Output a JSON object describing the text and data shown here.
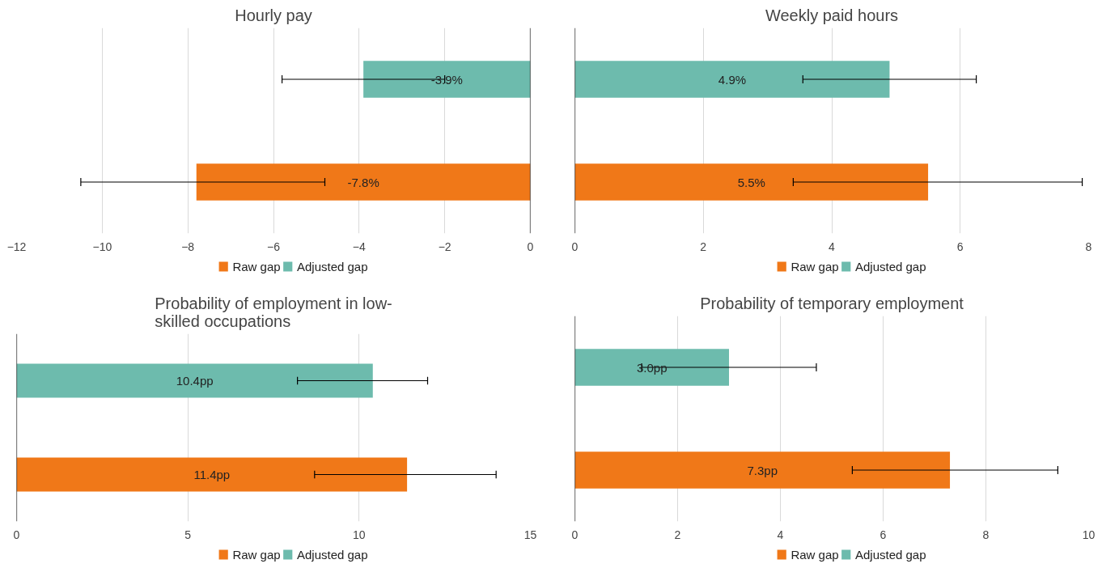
{
  "chart_data": [
    {
      "type": "bar",
      "orientation": "horizontal",
      "title": "Hourly pay",
      "categories": [
        null,
        null
      ],
      "xlim": [
        -12,
        0
      ],
      "xticks": [
        -12,
        -10,
        -8,
        -6,
        -4,
        -2,
        0
      ],
      "grid": "x",
      "legend": "bottom",
      "series": [
        {
          "name": "Raw gap",
          "color": "#f07818",
          "values": [
            null,
            -7.8
          ],
          "errors": [
            null,
            [
              -10.5,
              -4.8
            ]
          ],
          "value_labels": [
            null,
            "-7.8%"
          ]
        },
        {
          "name": "Adjusted gap",
          "color": "#6dbbad",
          "values": [
            -3.9,
            null
          ],
          "errors": [
            [
              -5.8,
              -2.0
            ],
            null
          ],
          "value_labels": [
            "-3.9%",
            null
          ]
        }
      ]
    },
    {
      "type": "bar",
      "orientation": "horizontal",
      "title": "Weekly paid hours",
      "categories": [
        null,
        null
      ],
      "xlim": [
        0,
        8
      ],
      "xticks": [
        0,
        2,
        4,
        6,
        8
      ],
      "grid": "x",
      "legend": "bottom",
      "series": [
        {
          "name": "Raw gap",
          "color": "#f07818",
          "values": [
            null,
            5.5
          ],
          "errors": [
            null,
            [
              3.4,
              7.9
            ]
          ],
          "value_labels": [
            null,
            "5.5%"
          ]
        },
        {
          "name": "Adjusted gap",
          "color": "#6dbbad",
          "values": [
            4.9,
            null
          ],
          "errors": [
            [
              3.55,
              6.25
            ],
            null
          ],
          "value_labels": [
            "4.9%",
            null
          ]
        }
      ]
    },
    {
      "type": "bar",
      "orientation": "horizontal",
      "title": "Probability of employment in low-skilled occupations",
      "categories": [
        null,
        null
      ],
      "xlim": [
        0,
        15
      ],
      "xticks": [
        0,
        5,
        10,
        15
      ],
      "grid": "x",
      "legend": "bottom",
      "series": [
        {
          "name": "Raw gap",
          "color": "#f07818",
          "values": [
            null,
            11.4
          ],
          "errors": [
            null,
            [
              8.7,
              14.0
            ]
          ],
          "value_labels": [
            null,
            "11.4pp"
          ]
        },
        {
          "name": "Adjusted gap",
          "color": "#6dbbad",
          "values": [
            10.4,
            null
          ],
          "errors": [
            [
              8.2,
              12.0
            ],
            null
          ],
          "value_labels": [
            "10.4pp",
            null
          ]
        }
      ]
    },
    {
      "type": "bar",
      "orientation": "horizontal",
      "title": "Probability of temporary employment",
      "categories": [
        null,
        null
      ],
      "xlim": [
        0,
        10
      ],
      "xticks": [
        0,
        2,
        4,
        6,
        8,
        10
      ],
      "grid": "x",
      "legend": "bottom",
      "series": [
        {
          "name": "Raw gap",
          "color": "#f07818",
          "values": [
            null,
            7.3
          ],
          "errors": [
            null,
            [
              5.4,
              9.4
            ]
          ],
          "value_labels": [
            null,
            "7.3pp"
          ]
        },
        {
          "name": "Adjusted gap",
          "color": "#6dbbad",
          "values": [
            3.0,
            null
          ],
          "errors": [
            [
              1.3,
              4.7
            ],
            null
          ],
          "value_labels": [
            "3.0pp",
            null
          ]
        }
      ]
    }
  ]
}
